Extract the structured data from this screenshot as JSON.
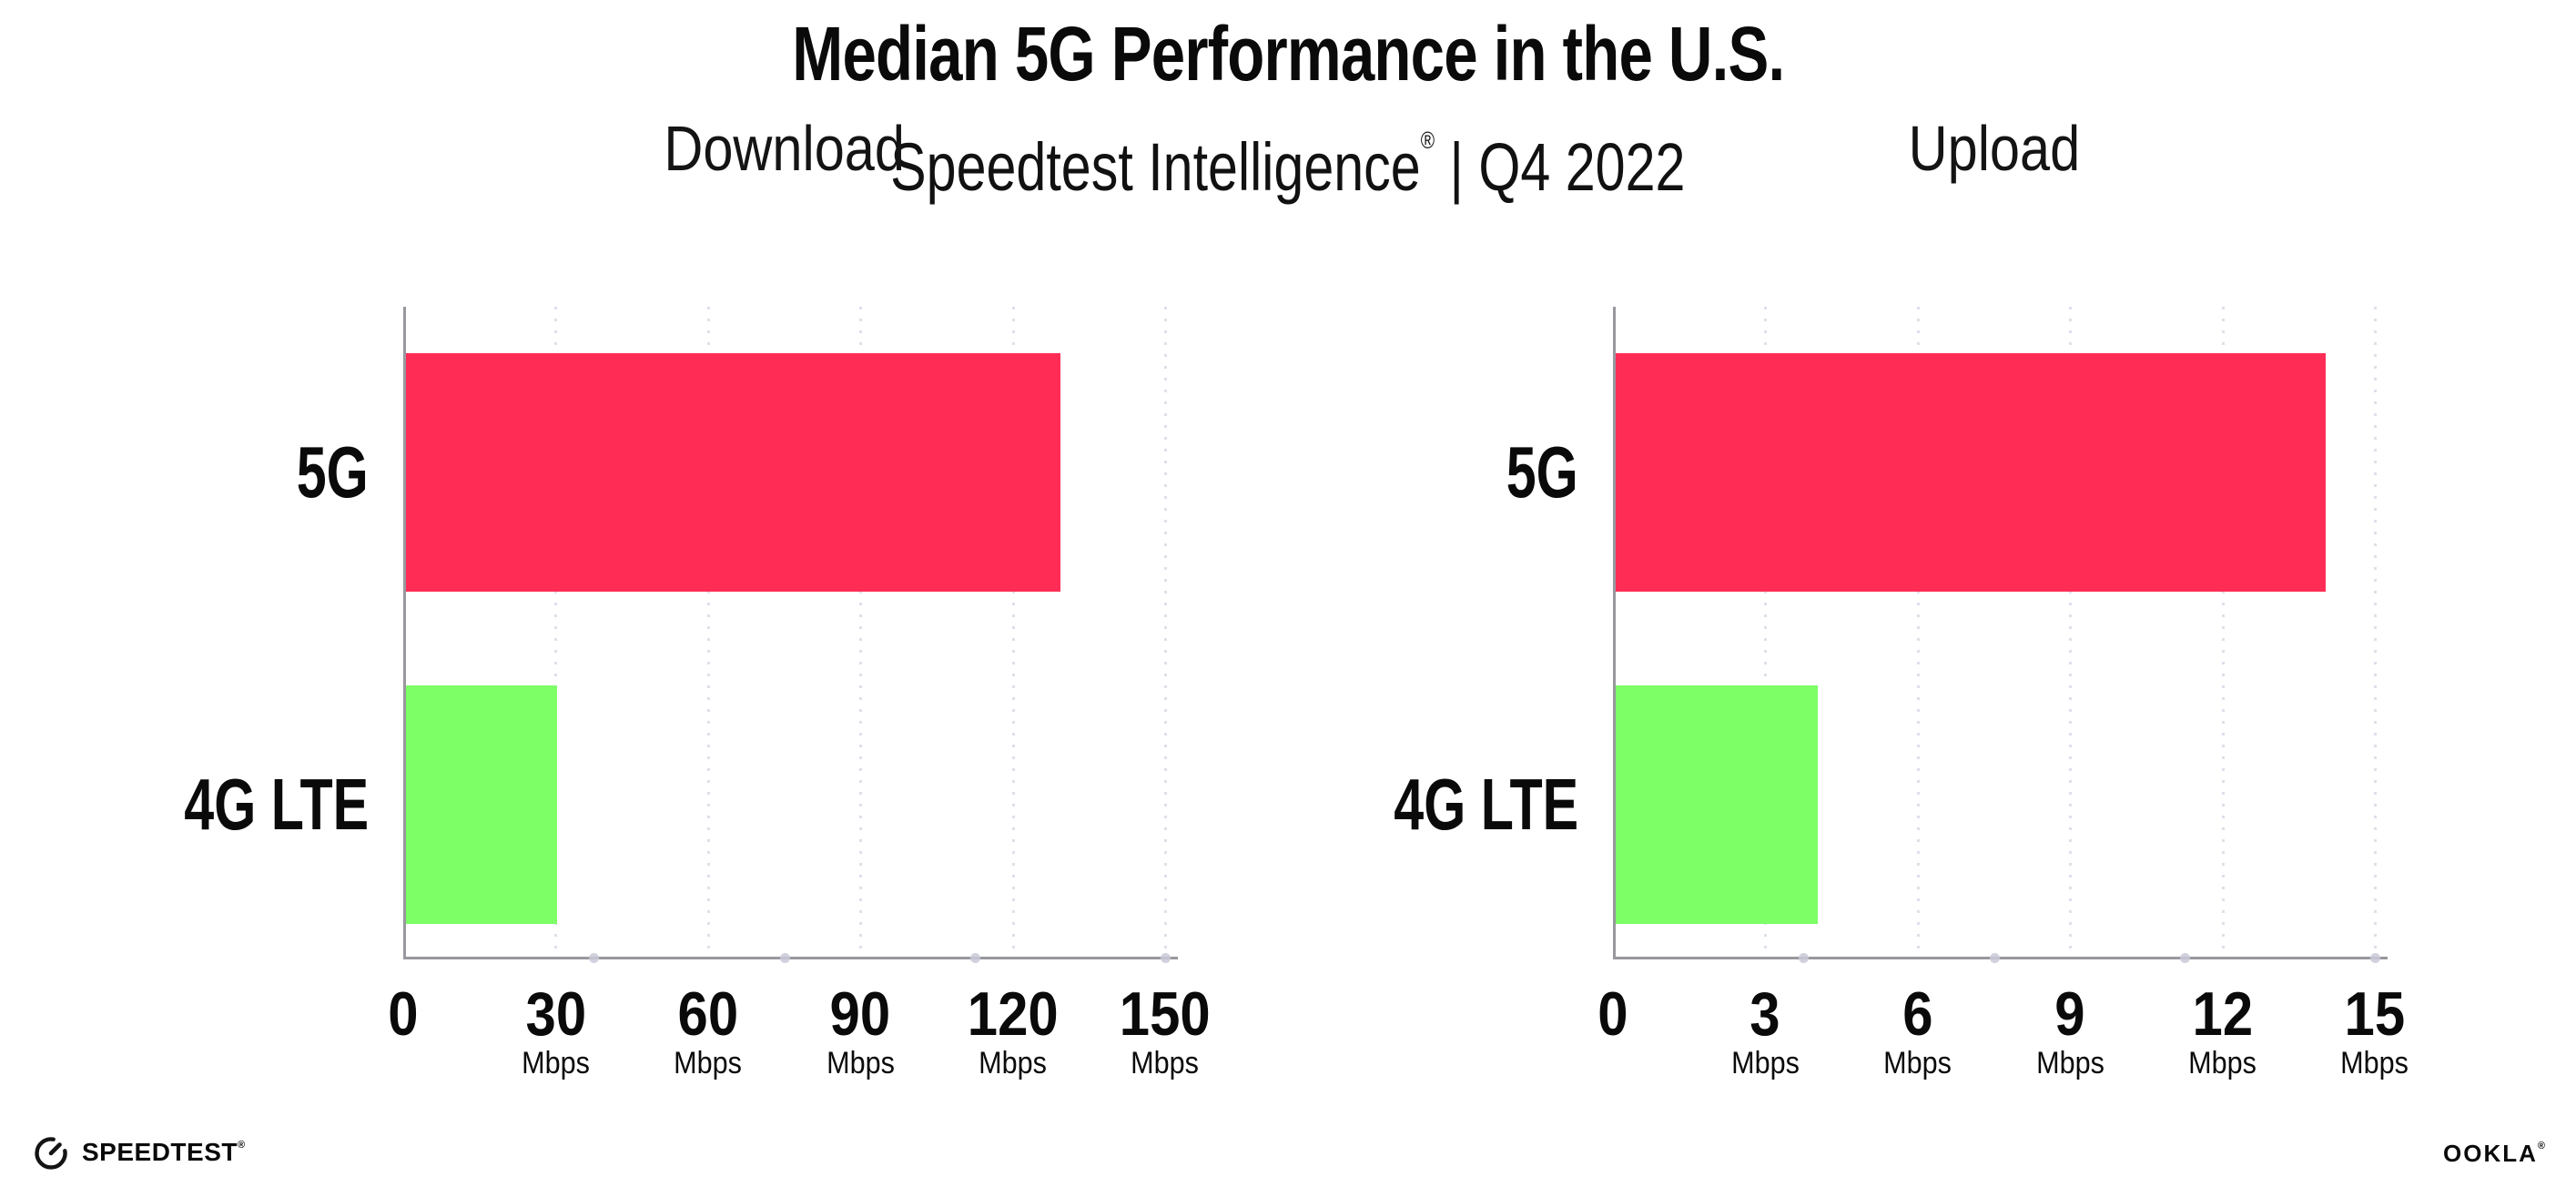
{
  "header": {
    "title": "Median 5G Performance in the U.S.",
    "subtitle_brand": "Speedtest Intelligence",
    "reg_mark": "®",
    "subtitle_rest": " | Q4 2022"
  },
  "colors": {
    "bar_5g": "#FF2D55",
    "bar_4g_lte": "#7DFF66",
    "axis": "#98989e",
    "gridline": "#dfdfea",
    "text": "#0a0a0a"
  },
  "chart_data": [
    {
      "type": "bar",
      "orientation": "horizontal",
      "title": "Download",
      "categories": [
        "5G",
        "4G LTE"
      ],
      "values": [
        129,
        30
      ],
      "unit": "Mbps",
      "xlim": [
        0,
        150
      ],
      "xticks": [
        0,
        30,
        60,
        90,
        120,
        150
      ],
      "grid": "vertical-dotted",
      "legend": "none"
    },
    {
      "type": "bar",
      "orientation": "horizontal",
      "title": "Upload",
      "categories": [
        "5G",
        "4G LTE"
      ],
      "values": [
        14,
        4
      ],
      "unit": "Mbps",
      "xlim": [
        0,
        15
      ],
      "xticks": [
        0,
        3,
        6,
        9,
        12,
        15
      ],
      "grid": "vertical-dotted",
      "legend": "none"
    }
  ],
  "footer": {
    "speedtest_logo_text": "SPEEDTEST",
    "ookla_logo_text": "OOKLA",
    "mark": "®"
  }
}
